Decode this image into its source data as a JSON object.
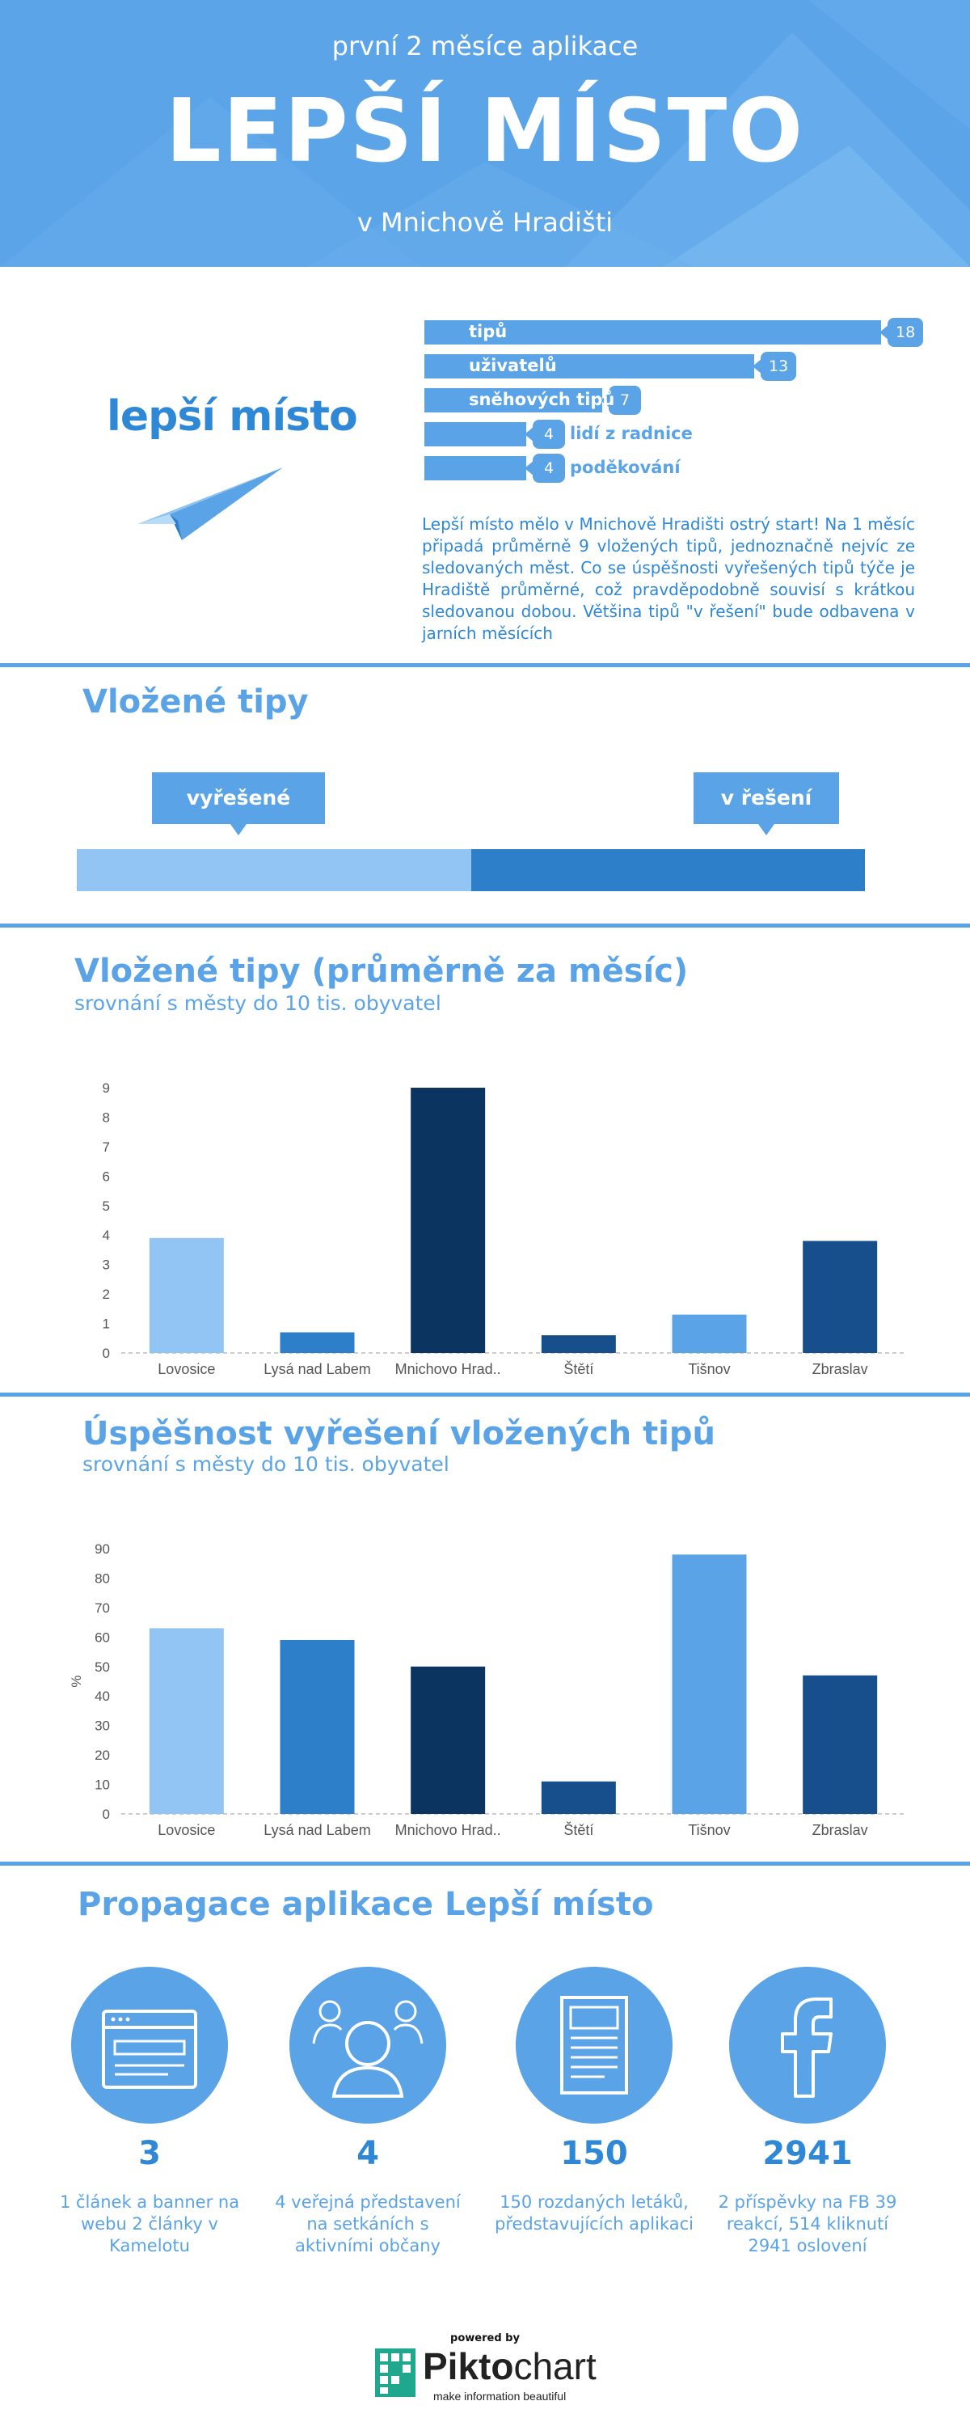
{
  "header": {
    "subtitle": "první 2 měsíce aplikace",
    "title": "LEPŠÍ MÍSTO",
    "place": "v Mnichově Hradišti"
  },
  "logo_text": "lepší místo",
  "summary_bars": [
    {
      "label": "tipů",
      "value": 18
    },
    {
      "label": "uživatelů",
      "value": 13
    },
    {
      "label": "sněhových tipů",
      "value": 7
    },
    {
      "label": "lidí z radnice",
      "value": 4
    },
    {
      "label": "poděkování",
      "value": 4
    }
  ],
  "intro_text": "Lepší místo mělo v Mnichově Hradišti ostrý start! Na 1 měsíc připadá průměrně 9 vložených tipů, jednoznačně nejvíc ze sledovaných měst. Co se úspěšnosti vyřešených tipů týče je Hradiště průměrné, což pravděpodobně souvisí s krátkou sledovanou dobou. Většina tipů \"v řešení\" bude odbavena v jarních měsících",
  "proportion": {
    "title": "Vložené tipy",
    "left_label": "vyřešené",
    "right_label": "v řešení",
    "left_fraction": 0.5,
    "left_color": "#92c5f3",
    "right_color": "#2e7fc9"
  },
  "chart_data": [
    {
      "type": "bar",
      "title": "Vložené tipy (průměrně za měsíc)",
      "subtitle": "srovnání s městy do 10 tis. obyvatel",
      "categories": [
        "Lovosice",
        "Lysá nad Labem",
        "Mnichovo Hrad..",
        "Štětí",
        "Tišnov",
        "Zbraslav"
      ],
      "values": [
        3.9,
        0.7,
        9.0,
        0.6,
        1.3,
        3.8
      ],
      "colors": [
        "#92c5f3",
        "#2e7fc9",
        "#0b3560",
        "#164f8c",
        "#5aa3e6",
        "#164f8c"
      ],
      "ylabel": "",
      "ylim": [
        0,
        9
      ],
      "yticks": [
        0,
        1,
        2,
        3,
        4,
        5,
        6,
        7,
        8,
        9
      ],
      "grid": false
    },
    {
      "type": "bar",
      "title": "Úspěšnost vyřešení vložených tipů",
      "subtitle": "srovnání s městy do 10 tis. obyvatel",
      "categories": [
        "Lovosice",
        "Lysá nad Labem",
        "Mnichovo Hrad..",
        "Štětí",
        "Tišnov",
        "Zbraslav"
      ],
      "values": [
        63,
        59,
        50,
        11,
        88,
        47
      ],
      "colors": [
        "#92c5f3",
        "#2e7fc9",
        "#0b3560",
        "#164f8c",
        "#5aa3e6",
        "#164f8c"
      ],
      "ylabel": "%",
      "ylim": [
        0,
        90
      ],
      "yticks": [
        0,
        10,
        20,
        30,
        40,
        50,
        60,
        70,
        80,
        90
      ],
      "grid": false
    }
  ],
  "promo": {
    "title": "Propagace aplikace Lepší místo",
    "items": [
      {
        "icon": "browser-window-icon",
        "number": "3",
        "text": "1 článek a banner na webu 2 články v Kamelotu"
      },
      {
        "icon": "people-icon",
        "number": "4",
        "text": "4 veřejná představení na setkáních s aktivními občany"
      },
      {
        "icon": "document-icon",
        "number": "150",
        "text": "150 rozdaných letáků, představujících aplikaci"
      },
      {
        "icon": "facebook-icon",
        "number": "2941",
        "text": "2 příspěvky na FB 39 reakcí, 514 kliknutí 2941 oslovení"
      }
    ]
  },
  "footer": {
    "powered": "powered by",
    "brand_a": "Pikto",
    "brand_b": "chart",
    "tagline": "make information beautiful"
  }
}
